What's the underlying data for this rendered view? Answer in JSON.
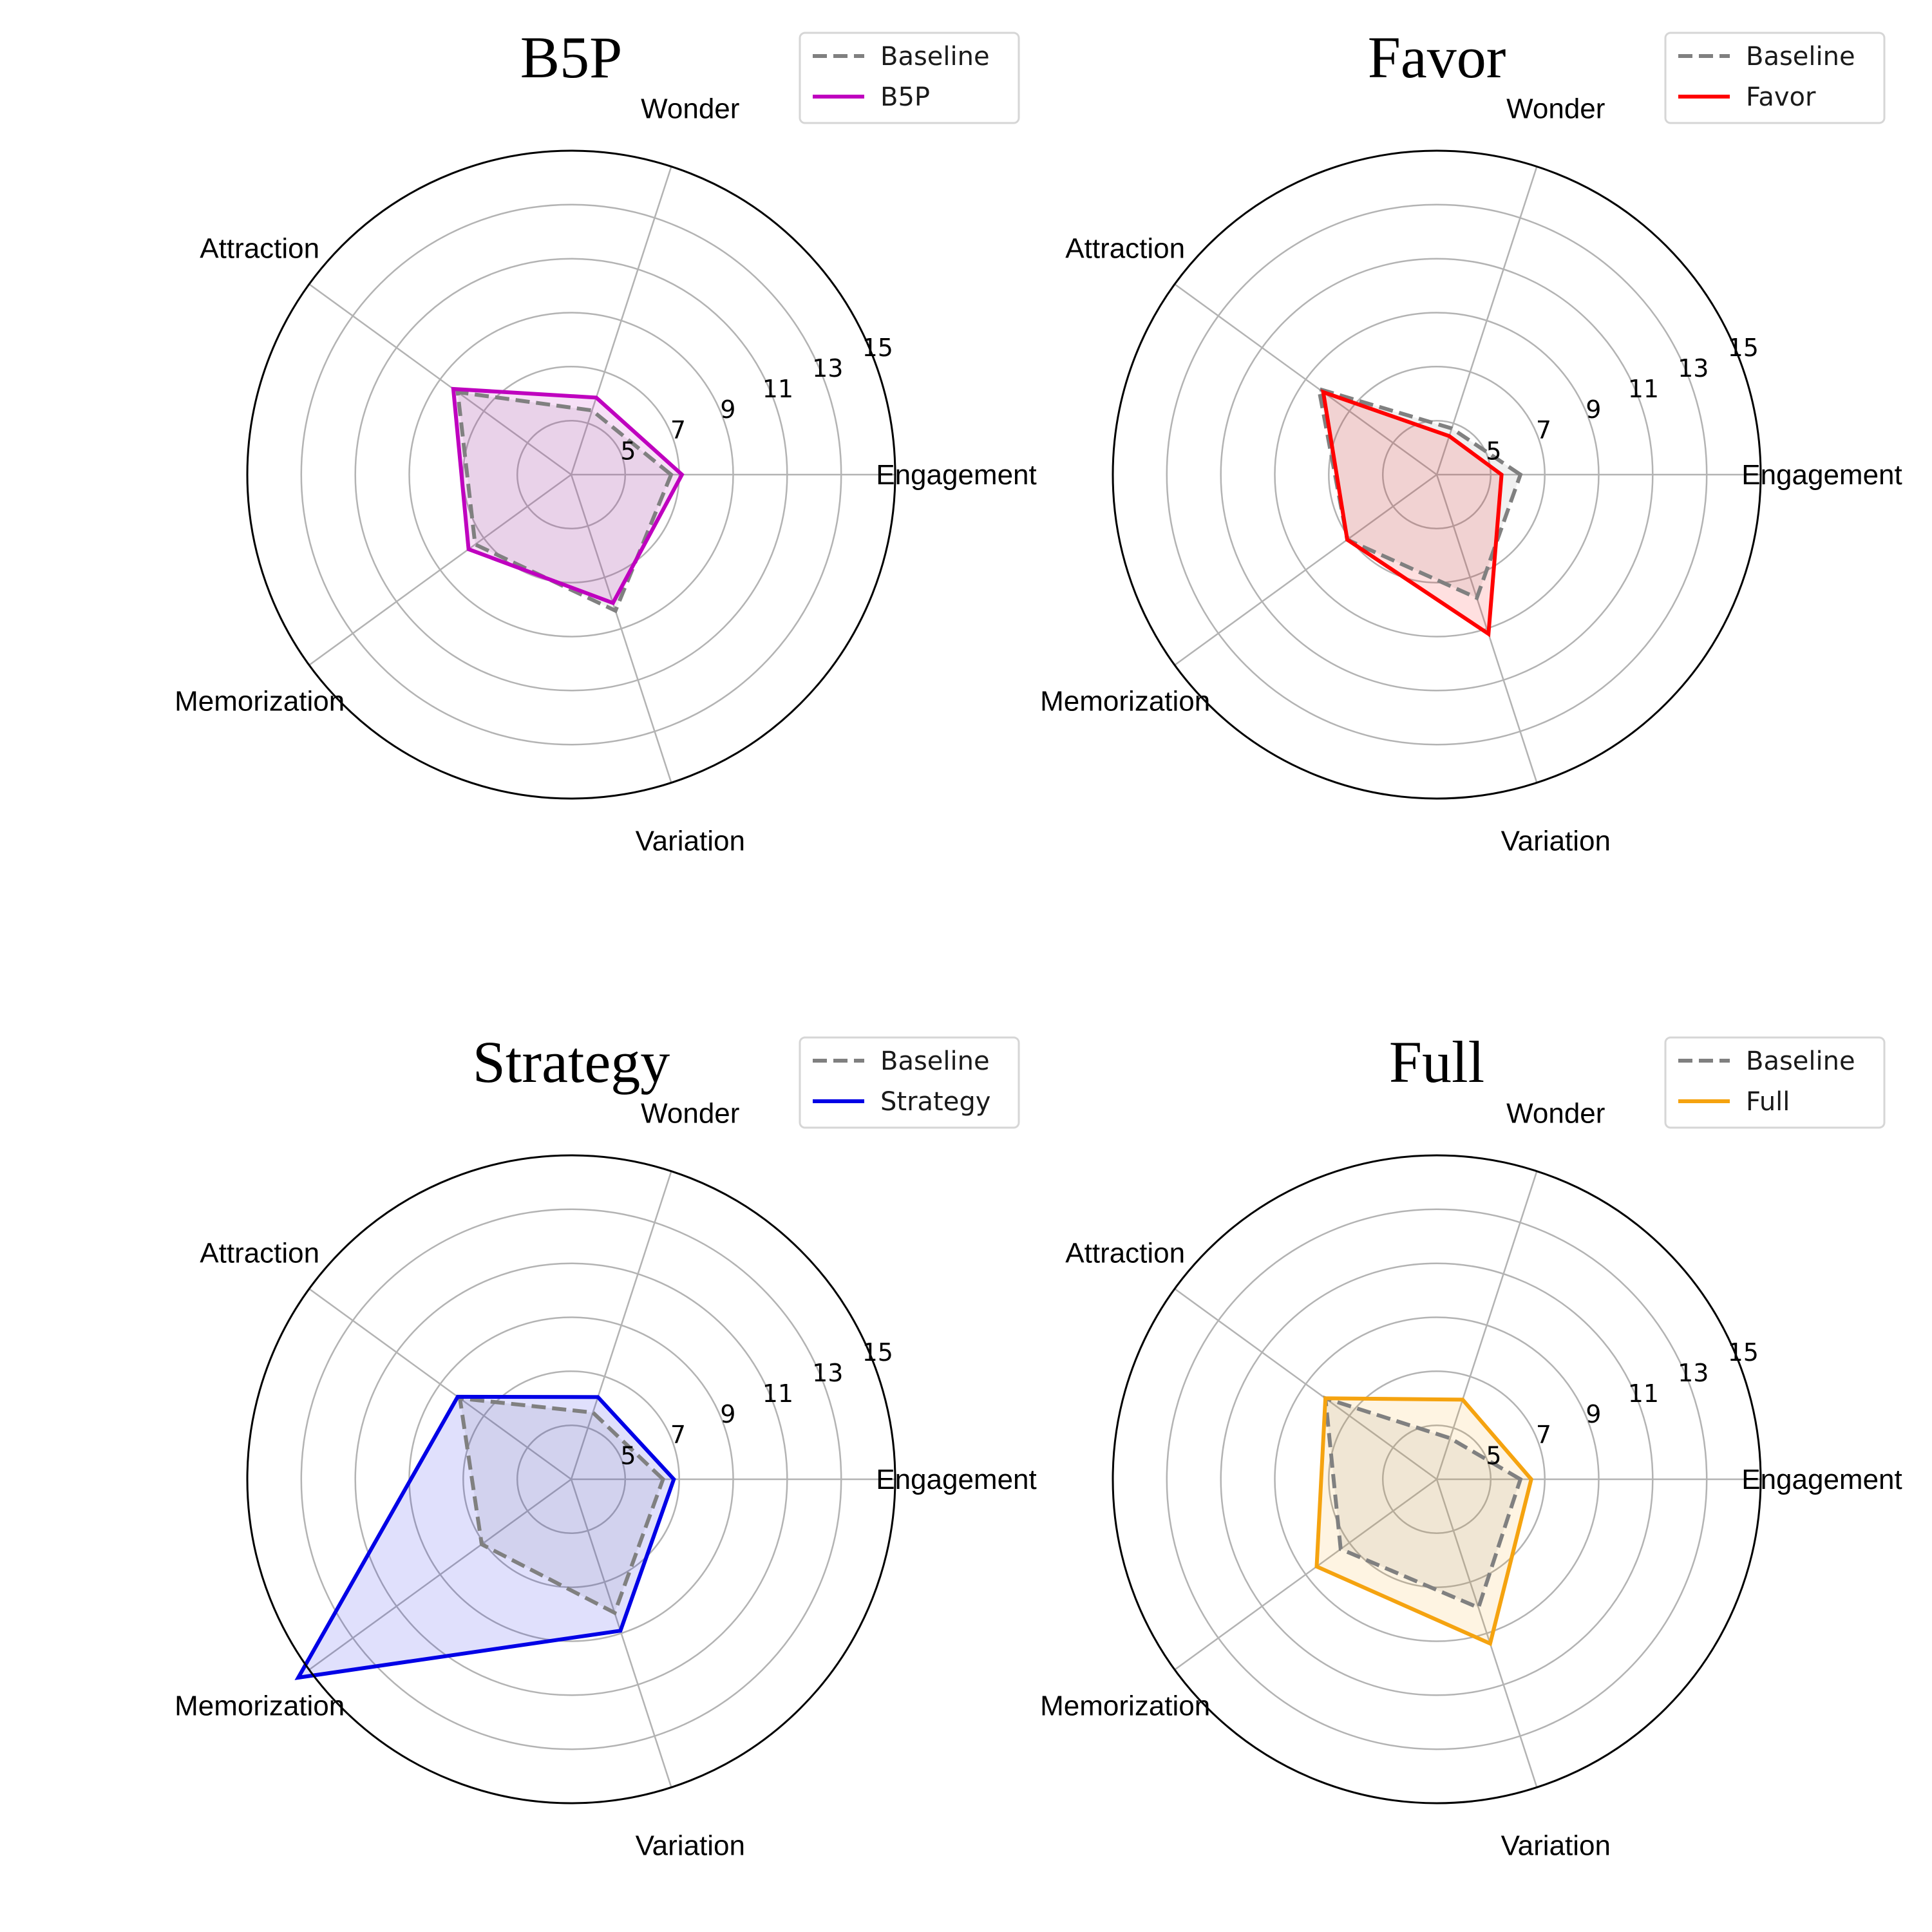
{
  "chart_data": [
    {
      "type": "radar",
      "title": "B5P",
      "axes": [
        "Engagement",
        "Wonder",
        "Attraction",
        "Memorization",
        "Variation"
      ],
      "rlim": [
        3,
        15
      ],
      "radial_ticks": [
        5,
        7,
        9,
        11,
        13,
        15
      ],
      "grid": true,
      "legend_position": "top-right",
      "series": [
        {
          "name": "Baseline",
          "values": [
            6.7,
            5.5,
            8.2,
            7.4,
            8.3
          ],
          "color": "#808080",
          "style": "dashed"
        },
        {
          "name": "B5P",
          "values": [
            7.1,
            6.0,
            8.4,
            7.7,
            8.0
          ],
          "color": "#bf00bf",
          "style": "solid"
        }
      ]
    },
    {
      "type": "radar",
      "title": "Favor",
      "axes": [
        "Engagement",
        "Wonder",
        "Attraction",
        "Memorization",
        "Variation"
      ],
      "rlim": [
        3,
        15
      ],
      "radial_ticks": [
        5,
        7,
        9,
        11,
        13,
        15
      ],
      "grid": true,
      "legend_position": "top-right",
      "series": [
        {
          "name": "Baseline",
          "values": [
            6.1,
            4.8,
            8.4,
            7.1,
            7.8
          ],
          "color": "#808080",
          "style": "dashed"
        },
        {
          "name": "Favor",
          "values": [
            5.4,
            4.5,
            8.2,
            7.1,
            9.2
          ],
          "color": "#ff0000",
          "style": "solid"
        }
      ]
    },
    {
      "type": "radar",
      "title": "Strategy",
      "axes": [
        "Engagement",
        "Wonder",
        "Attraction",
        "Memorization",
        "Variation"
      ],
      "rlim": [
        3,
        15
      ],
      "radial_ticks": [
        5,
        7,
        9,
        11,
        13,
        15
      ],
      "grid": true,
      "legend_position": "top-right",
      "series": [
        {
          "name": "Baseline",
          "values": [
            6.4,
            5.6,
            8.1,
            7.1,
            8.2
          ],
          "color": "#808080",
          "style": "dashed"
        },
        {
          "name": "Strategy",
          "values": [
            6.8,
            6.2,
            8.2,
            15.5,
            8.9
          ],
          "color": "#0000e6",
          "style": "solid"
        }
      ]
    },
    {
      "type": "radar",
      "title": "Full",
      "axes": [
        "Engagement",
        "Wonder",
        "Attraction",
        "Memorization",
        "Variation"
      ],
      "rlim": [
        3,
        15
      ],
      "radial_ticks": [
        5,
        7,
        9,
        11,
        13,
        15
      ],
      "grid": true,
      "legend_position": "top-right",
      "series": [
        {
          "name": "Baseline",
          "values": [
            6.1,
            4.6,
            8.1,
            7.4,
            8.0
          ],
          "color": "#808080",
          "style": "dashed"
        },
        {
          "name": "Full",
          "values": [
            6.5,
            6.1,
            8.1,
            8.5,
            9.4
          ],
          "color": "#f5a30f",
          "style": "solid"
        }
      ]
    }
  ]
}
